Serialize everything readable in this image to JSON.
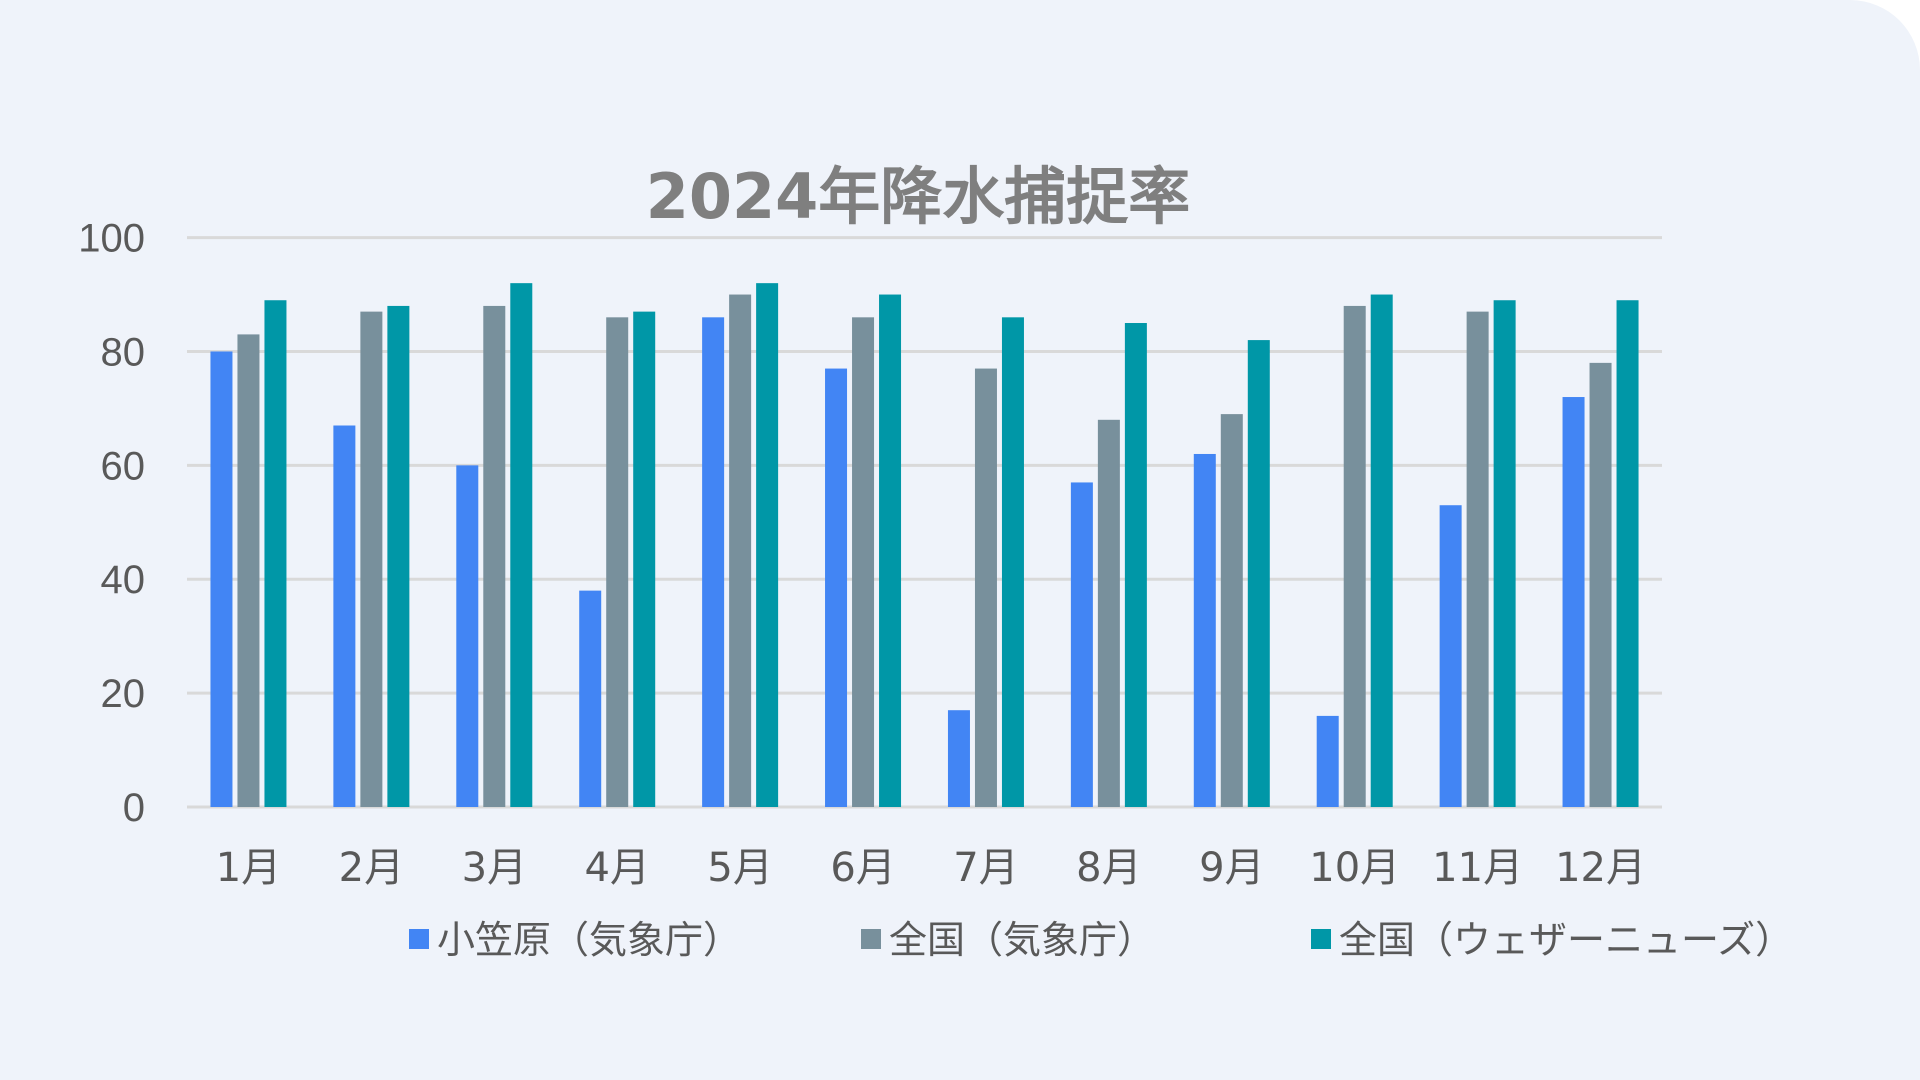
{
  "chart_data": {
    "type": "bar",
    "title": "2024年降水捕捉率",
    "xlabel": "",
    "ylabel": "",
    "ylim": [
      0,
      100
    ],
    "yticks": [
      0,
      20,
      40,
      60,
      80,
      100
    ],
    "grid": true,
    "legend_position": "bottom",
    "categories": [
      "1月",
      "2月",
      "3月",
      "4月",
      "5月",
      "6月",
      "7月",
      "8月",
      "9月",
      "10月",
      "11月",
      "12月"
    ],
    "series": [
      {
        "name": "小笠原（気象庁）",
        "color": "#4285f4",
        "values": [
          80,
          67,
          60,
          38,
          86,
          77,
          17,
          57,
          62,
          16,
          53,
          72
        ]
      },
      {
        "name": "全国（気象庁）",
        "color": "#78909c",
        "values": [
          83,
          87,
          88,
          86,
          90,
          86,
          77,
          68,
          69,
          88,
          87,
          78
        ]
      },
      {
        "name": "全国（ウェザーニューズ）",
        "color": "#0097a7",
        "values": [
          89,
          88,
          92,
          87,
          92,
          90,
          86,
          85,
          82,
          90,
          89,
          89
        ]
      }
    ]
  }
}
